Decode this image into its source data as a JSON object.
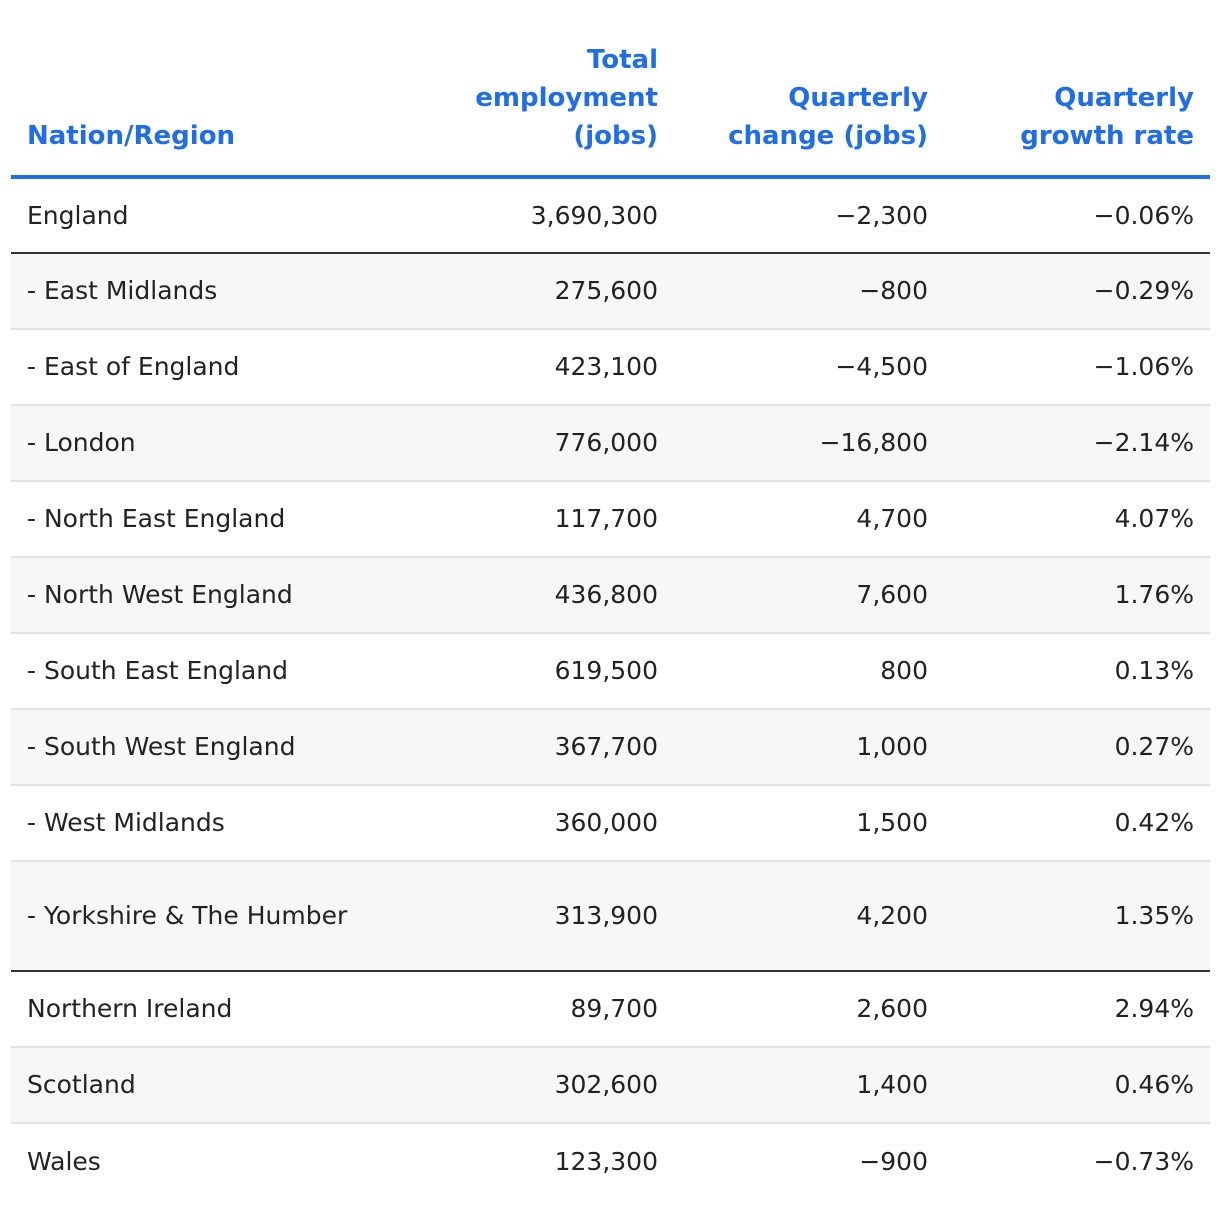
{
  "table": {
    "headers": {
      "region": "Nation/Region",
      "total": "Total employment (jobs)",
      "change": "Quarterly change (jobs)",
      "growth": "Quarterly growth rate"
    },
    "rows": [
      {
        "region": "England",
        "total": "3,690,300",
        "change": "−2,300",
        "growth": "−0.06%"
      },
      {
        "region": "- East Midlands",
        "total": "275,600",
        "change": "−800",
        "growth": "−0.29%"
      },
      {
        "region": "- East of England",
        "total": "423,100",
        "change": "−4,500",
        "growth": "−1.06%"
      },
      {
        "region": "- London",
        "total": "776,000",
        "change": "−16,800",
        "growth": "−2.14%"
      },
      {
        "region": "- North East England",
        "total": "117,700",
        "change": "4,700",
        "growth": "4.07%"
      },
      {
        "region": "- North West England",
        "total": "436,800",
        "change": "7,600",
        "growth": "1.76%"
      },
      {
        "region": "- South East England",
        "total": "619,500",
        "change": "800",
        "growth": "0.13%"
      },
      {
        "region": "- South West England",
        "total": "367,700",
        "change": "1,000",
        "growth": "0.27%"
      },
      {
        "region": "- West Midlands",
        "total": "360,000",
        "change": "1,500",
        "growth": "0.42%"
      },
      {
        "region": "- Yorkshire & The Humber",
        "total": "313,900",
        "change": "4,200",
        "growth": "1.35%"
      },
      {
        "region": "Northern Ireland",
        "total": "89,700",
        "change": "2,600",
        "growth": "2.94%"
      },
      {
        "region": "Scotland",
        "total": "302,600",
        "change": "1,400",
        "growth": "0.46%"
      },
      {
        "region": "Wales",
        "total": "123,300",
        "change": "−900",
        "growth": "−0.73%"
      }
    ]
  },
  "colors": {
    "header": "#1f6de8",
    "region_row_bg": "#f7f7f7",
    "text": "#222222"
  }
}
